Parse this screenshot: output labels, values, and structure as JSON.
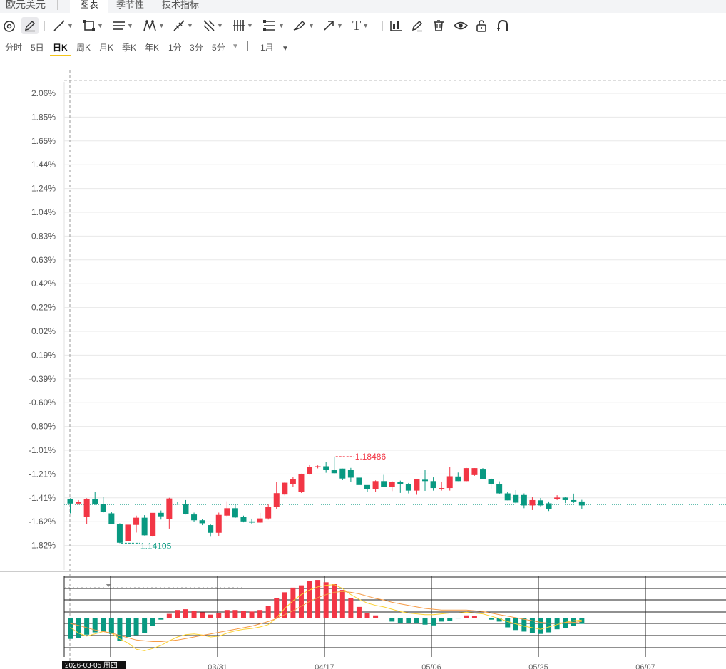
{
  "window": {
    "title": "欧元美元"
  },
  "tabs": [
    {
      "label": "图表",
      "active": true
    },
    {
      "label": "季节性",
      "active": false
    },
    {
      "label": "技术指标",
      "active": false
    }
  ],
  "toolbar": {
    "tools": [
      "magnet-icon",
      "pencil-icon",
      "line-icon",
      "rectangle-icon",
      "parallel-lines-icon",
      "pattern-icon",
      "ruler-icon",
      "fork-icon",
      "grid-bars-icon",
      "fib-levels-icon",
      "brush-icon",
      "arrow-icon",
      "text-icon",
      "bar-chart-icon",
      "edit-icon",
      "trash-icon",
      "eye-icon",
      "lock-icon",
      "magnet-u-icon"
    ],
    "text_glyph": "T"
  },
  "periods": [
    {
      "label": "分时",
      "active": false
    },
    {
      "label": "5日",
      "active": false
    },
    {
      "label": "日K",
      "active": true
    },
    {
      "label": "周K",
      "active": false
    },
    {
      "label": "月K",
      "active": false
    },
    {
      "label": "季K",
      "active": false
    },
    {
      "label": "年K",
      "active": false
    },
    {
      "label": "1分",
      "active": false
    },
    {
      "label": "3分",
      "active": false
    },
    {
      "label": "5分",
      "active": false
    }
  ],
  "range_select": "1月",
  "colors": {
    "up": "#f23645",
    "down": "#089981",
    "baseline": "#089981",
    "grid": "#e8e8e8",
    "label": "#555555",
    "ma_fast": "#fbd234",
    "ma_slow": "#f59a46"
  },
  "chart_data": {
    "type": "candlestick",
    "y_unit": "percent",
    "y_ticks": [
      "2.06%",
      "1.85%",
      "1.65%",
      "1.44%",
      "1.24%",
      "1.04%",
      "0.83%",
      "0.63%",
      "0.42%",
      "0.22%",
      "0.02%",
      "-0.19%",
      "-0.39%",
      "-0.60%",
      "-0.80%",
      "-1.01%",
      "-1.21%",
      "-1.41%",
      "-1.62%",
      "-1.82%"
    ],
    "ylim": [
      -1.92,
      2.1
    ],
    "baseline": -0.17,
    "x_tick_labels": [
      "03/31",
      "04/17",
      "05/06",
      "05/25",
      "06/07"
    ],
    "crosshair_date": "2026-03-05 周四",
    "max_label": "1.18486",
    "min_label": "1.14105",
    "candles": [
      [
        0.06,
        -0.13,
        0.1,
        -0.55
      ],
      [
        -0.13,
        -0.07,
        0.02,
        -0.18
      ],
      [
        -0.72,
        0.08,
        0.1,
        -1.02
      ],
      [
        0.08,
        -0.15,
        0.36,
        -0.19
      ],
      [
        -0.15,
        -0.5,
        0.16,
        -0.52
      ],
      [
        -0.55,
        -1.0,
        -0.5,
        -1.02
      ],
      [
        -1.0,
        -1.82,
        -0.98,
        -1.84
      ],
      [
        -1.76,
        -1.04,
        -1.03,
        -1.8
      ],
      [
        -1.05,
        -0.74,
        -0.65,
        -1.38
      ],
      [
        -0.74,
        -1.5,
        -0.63,
        -1.51
      ],
      [
        -1.54,
        -0.53,
        -0.56,
        -1.56
      ],
      [
        -0.53,
        -0.68,
        -0.43,
        -0.82
      ],
      [
        -0.79,
        0.09,
        0.12,
        -1.21
      ],
      [
        -0.14,
        -0.17,
        -0.07,
        -0.19
      ],
      [
        -0.17,
        -0.58,
        0.02,
        -0.6
      ],
      [
        -0.6,
        -0.85,
        -0.52,
        -0.92
      ],
      [
        -0.85,
        -0.98,
        -0.8,
        -1.06
      ],
      [
        -1.06,
        -1.39,
        -1.03,
        -1.56
      ],
      [
        -1.39,
        -0.62,
        -0.52,
        -1.52
      ],
      [
        -0.65,
        -0.33,
        -0.03,
        -0.68
      ],
      [
        -0.33,
        -0.73,
        -0.15,
        -0.75
      ],
      [
        -0.72,
        -0.9,
        -0.65,
        -0.94
      ],
      [
        -0.9,
        -0.95,
        -0.78,
        -1.02
      ],
      [
        -0.95,
        -0.77,
        -0.53,
        -0.97
      ],
      [
        -0.77,
        -0.28,
        -0.17,
        -0.82
      ],
      [
        -0.28,
        0.32,
        0.79,
        -0.35
      ],
      [
        0.26,
        0.77,
        0.81,
        0.22
      ],
      [
        0.72,
        0.93,
        1.02,
        0.59
      ],
      [
        0.37,
        1.15,
        1.16,
        0.33
      ],
      [
        1.15,
        1.44,
        1.54,
        1.12
      ],
      [
        1.44,
        1.48,
        1.52,
        1.39
      ],
      [
        1.48,
        1.34,
        1.65,
        1.2
      ],
      [
        1.31,
        1.18,
        1.9,
        1.17
      ],
      [
        1.38,
        0.95,
        1.38,
        0.88
      ],
      [
        1.34,
        0.99,
        1.41,
        0.8
      ],
      [
        0.99,
        0.67,
        0.96,
        0.67
      ],
      [
        0.67,
        0.49,
        0.65,
        0.36
      ],
      [
        0.49,
        0.84,
        0.87,
        0.38
      ],
      [
        0.84,
        0.6,
        1.11,
        0.58
      ],
      [
        0.6,
        0.79,
        0.84,
        0.41
      ],
      [
        0.79,
        0.72,
        0.86,
        0.33
      ],
      [
        0.72,
        0.43,
        0.76,
        0.31
      ],
      [
        0.43,
        0.92,
        0.93,
        0.25
      ],
      [
        0.9,
        0.84,
        1.32,
        0.42
      ],
      [
        0.84,
        0.54,
        1.0,
        0.43
      ],
      [
        0.48,
        0.54,
        0.82,
        0.43
      ],
      [
        0.54,
        1.05,
        1.45,
        0.43
      ],
      [
        1.04,
        0.84,
        1.21,
        0.84
      ],
      [
        0.84,
        1.4,
        1.41,
        0.83
      ],
      [
        1.1,
        1.4,
        1.4,
        1.07
      ],
      [
        1.37,
        0.93,
        1.4,
        0.92
      ],
      [
        0.93,
        0.71,
        0.97,
        0.52
      ],
      [
        0.71,
        0.31,
        0.83,
        0.28
      ],
      [
        0.31,
        0.01,
        0.37,
        0.01
      ],
      [
        0.24,
        -0.09,
        0.45,
        -0.12
      ],
      [
        0.24,
        -0.21,
        0.31,
        -0.33
      ],
      [
        -0.21,
        0.02,
        0.14,
        -0.41
      ],
      [
        0.01,
        -0.21,
        0.11,
        -0.25
      ],
      [
        -0.12,
        -0.35,
        -0.04,
        -0.45
      ],
      [
        0.08,
        0.13,
        0.23,
        0.02
      ],
      [
        0.13,
        0.02,
        0.16,
        -0.11
      ],
      [
        0.02,
        -0.04,
        0.3,
        -0.11
      ],
      [
        -0.04,
        -0.21,
        0.03,
        -0.35
      ]
    ],
    "macd_hist": [
      -0.55,
      -0.52,
      -0.44,
      -0.38,
      -0.36,
      -0.42,
      -0.6,
      -0.5,
      -0.45,
      -0.4,
      -0.22,
      -0.05,
      0.1,
      0.2,
      0.22,
      0.18,
      0.14,
      0.08,
      0.12,
      0.2,
      0.2,
      0.18,
      0.16,
      0.2,
      0.3,
      0.5,
      0.66,
      0.78,
      0.84,
      0.95,
      0.98,
      0.92,
      0.88,
      0.72,
      0.5,
      0.28,
      0.12,
      0.06,
      0.0,
      -0.1,
      -0.14,
      -0.14,
      -0.14,
      -0.18,
      -0.2,
      -0.1,
      -0.08,
      -0.02,
      0.06,
      0.04,
      0.0,
      -0.05,
      -0.1,
      -0.25,
      -0.32,
      -0.36,
      -0.4,
      -0.42,
      -0.38,
      -0.3,
      -0.26,
      -0.22,
      -0.16
    ],
    "macd_fast": [
      -0.25,
      -0.4,
      -0.48,
      -0.42,
      -0.36,
      -0.4,
      -0.55,
      -0.66,
      -0.82,
      -0.86,
      -0.8,
      -0.72,
      -0.6,
      -0.5,
      -0.44,
      -0.42,
      -0.45,
      -0.5,
      -0.48,
      -0.4,
      -0.34,
      -0.3,
      -0.28,
      -0.24,
      -0.18,
      0.0,
      0.24,
      0.44,
      0.6,
      0.72,
      0.8,
      0.84,
      0.86,
      0.76,
      0.6,
      0.48,
      0.38,
      0.32,
      0.28,
      0.22,
      0.16,
      0.12,
      0.1,
      0.08,
      0.08,
      0.1,
      0.12,
      0.12,
      0.14,
      0.12,
      0.1,
      0.04,
      -0.02,
      -0.1,
      -0.16,
      -0.22,
      -0.26,
      -0.3,
      -0.24,
      -0.18,
      -0.12,
      -0.08,
      -0.06
    ],
    "macd_slow": [
      -0.15,
      -0.2,
      -0.26,
      -0.32,
      -0.36,
      -0.4,
      -0.46,
      -0.52,
      -0.58,
      -0.6,
      -0.62,
      -0.62,
      -0.6,
      -0.58,
      -0.54,
      -0.5,
      -0.46,
      -0.42,
      -0.38,
      -0.34,
      -0.3,
      -0.26,
      -0.22,
      -0.16,
      -0.1,
      -0.02,
      0.08,
      0.18,
      0.3,
      0.42,
      0.52,
      0.6,
      0.66,
      0.68,
      0.66,
      0.62,
      0.56,
      0.5,
      0.46,
      0.4,
      0.36,
      0.32,
      0.28,
      0.24,
      0.22,
      0.2,
      0.2,
      0.2,
      0.2,
      0.18,
      0.16,
      0.12,
      0.08,
      0.04,
      0.0,
      -0.04,
      -0.08,
      -0.12,
      -0.14,
      -0.14,
      -0.13,
      -0.12,
      -0.1
    ],
    "macd_ylim": [
      -1.0,
      1.05
    ]
  }
}
